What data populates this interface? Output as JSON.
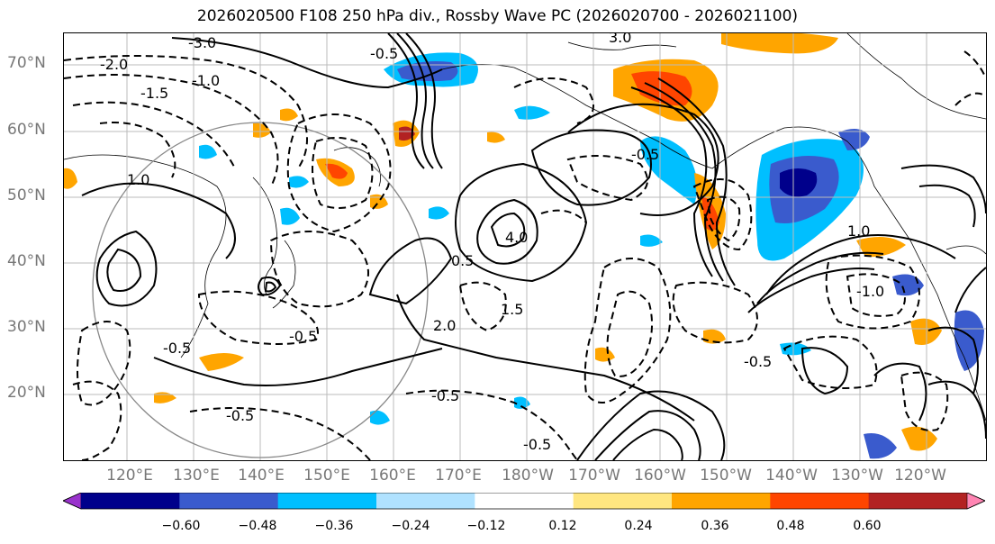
{
  "title": "2026020500 F108 250 hPa div., Rossby Wave PC (2026020700 - 2026021100)",
  "lat_labels": [
    "70°N",
    "60°N",
    "50°N",
    "40°N",
    "30°N",
    "20°N"
  ],
  "lon_labels": [
    "120°E",
    "130°E",
    "140°E",
    "150°E",
    "160°E",
    "170°E",
    "180°W",
    "170°W",
    "160°W",
    "150°W",
    "140°W",
    "130°W",
    "120°W"
  ],
  "colorbar": {
    "ticks": [
      "−0.60",
      "−0.48",
      "−0.36",
      "−0.24",
      "−0.12",
      "0.12",
      "0.24",
      "0.36",
      "0.48",
      "0.60"
    ],
    "colors": [
      "#9932cc",
      "#00008b",
      "#3a5bcd",
      "#00bfff",
      "#b0e2ff",
      "#ffffff",
      "#ffe680",
      "#ffa500",
      "#ff4500",
      "#b22222",
      "#ff85b3"
    ]
  },
  "contour_labels": [
    "-3.0",
    "-2.0",
    "-1.5",
    "-1.0",
    "-0.5",
    "0.5",
    "1.0",
    "1.5",
    "2.0",
    "3.0",
    "4.0",
    "-0.5",
    "-0.5",
    "-0.5",
    "-0.5",
    "-1.0",
    "1.0",
    "-0.5",
    "-0.5",
    "-0.5"
  ]
}
